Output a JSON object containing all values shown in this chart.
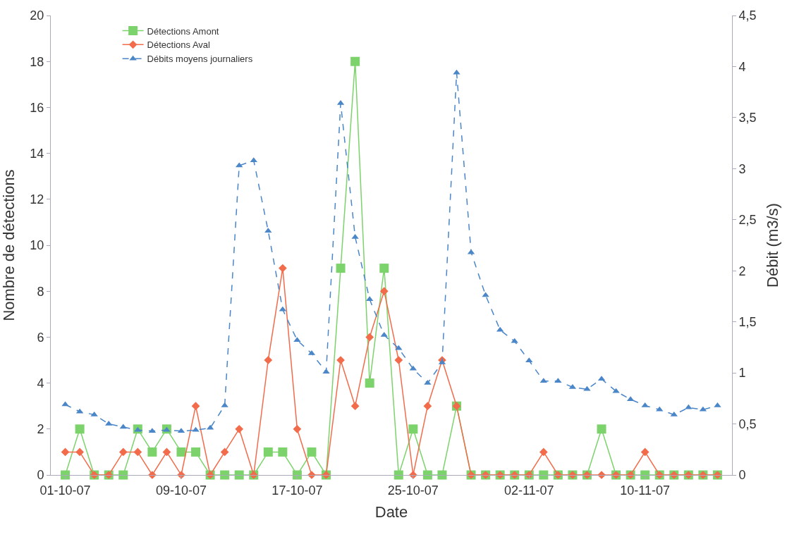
{
  "chart_data": {
    "type": "line",
    "xlabel": "Date",
    "ylabel": "Nombre de détections",
    "y2label": "Débit (m3/s)",
    "x": [
      "--10-01",
      "--10-02",
      "--10-03",
      "--10-04",
      "--10-05",
      "--10-06",
      "--10-07",
      "--10-08",
      "--10-09",
      "--10-10",
      "--10-11",
      "--10-12",
      "--10-13",
      "--10-14",
      "--10-15",
      "--10-16",
      "--10-17",
      "--10-18",
      "--10-19",
      "--10-20",
      "--10-21",
      "--10-22",
      "--10-23",
      "--10-24",
      "--10-25",
      "--10-26",
      "--10-27",
      "--10-28",
      "--10-29",
      "--10-30",
      "--10-31",
      "--11-01",
      "--11-02",
      "--11-03",
      "--11-04",
      "--11-05",
      "--11-06",
      "--11-07",
      "--11-08",
      "--11-09",
      "--11-10",
      "--11-11",
      "--11-12",
      "--11-13",
      "--11-14",
      "--11-15"
    ],
    "series": [
      {
        "name": "Détections Amont",
        "color": "#7dd36b",
        "marker": "square",
        "line_style": "solid",
        "values": [
          0,
          2,
          0,
          0,
          0,
          2,
          1,
          2,
          1,
          1,
          0,
          0,
          0,
          0,
          1,
          1,
          0,
          1,
          0,
          9,
          18,
          4,
          9,
          0,
          2,
          0,
          0,
          3,
          0,
          0,
          0,
          0,
          0,
          0,
          0,
          0,
          0,
          2,
          0,
          0,
          0,
          0,
          0,
          0,
          0,
          0
        ]
      },
      {
        "name": "Détections Aval",
        "color": "#f26b4a",
        "marker": "diamond",
        "line_style": "solid",
        "values": [
          1,
          1,
          0,
          0,
          1,
          1,
          0,
          1,
          0,
          3,
          0,
          1,
          2,
          0,
          5,
          9,
          2,
          0,
          0,
          5,
          3,
          6,
          8,
          5,
          0,
          3,
          5,
          3,
          0,
          0,
          0,
          0,
          0,
          1,
          0,
          0,
          0,
          0,
          0,
          0,
          1,
          0,
          0,
          0,
          0,
          0
        ]
      },
      {
        "name": "Débits moyens journaliers",
        "color": "#4a86c8",
        "marker": "triangle",
        "line_style": "dashed",
        "axis": "y2",
        "values": [
          0.69,
          0.62,
          0.59,
          0.5,
          0.47,
          0.44,
          0.43,
          0.44,
          0.43,
          0.44,
          0.46,
          0.68,
          3.03,
          3.08,
          2.39,
          1.62,
          1.32,
          1.19,
          1.01,
          3.64,
          2.33,
          1.72,
          1.37,
          1.24,
          1.04,
          0.9,
          1.1,
          3.94,
          2.18,
          1.76,
          1.42,
          1.31,
          1.12,
          0.92,
          0.92,
          0.86,
          0.84,
          0.94,
          0.82,
          0.74,
          0.68,
          0.64,
          0.59,
          0.66,
          0.64,
          0.68
        ]
      }
    ],
    "xlim": [
      "--09-30",
      "--11-16"
    ],
    "xticks": [
      {
        "value": "--10-01",
        "label": "01-10-07"
      },
      {
        "value": "--10-09",
        "label": "09-10-07"
      },
      {
        "value": "--10-17",
        "label": "17-10-07"
      },
      {
        "value": "--10-25",
        "label": "25-10-07"
      },
      {
        "value": "--11-02",
        "label": "02-11-07"
      },
      {
        "value": "--11-10",
        "label": "10-11-07"
      }
    ],
    "ylim": [
      0,
      20
    ],
    "yticks": [
      0,
      2,
      4,
      6,
      8,
      10,
      12,
      14,
      16,
      18,
      20
    ],
    "y2lim": [
      0,
      4.5
    ],
    "y2ticks": [
      {
        "value": 0,
        "label": "0"
      },
      {
        "value": 0.5,
        "label": "0,5"
      },
      {
        "value": 1,
        "label": "1"
      },
      {
        "value": 1.5,
        "label": "1,5"
      },
      {
        "value": 2,
        "label": "2"
      },
      {
        "value": 2.5,
        "label": "2,5"
      },
      {
        "value": 3,
        "label": "3"
      },
      {
        "value": 3.5,
        "label": "3,5"
      },
      {
        "value": 4,
        "label": "4"
      },
      {
        "value": 4.5,
        "label": "4,5"
      }
    ],
    "grid": false,
    "legend": "top left"
  }
}
